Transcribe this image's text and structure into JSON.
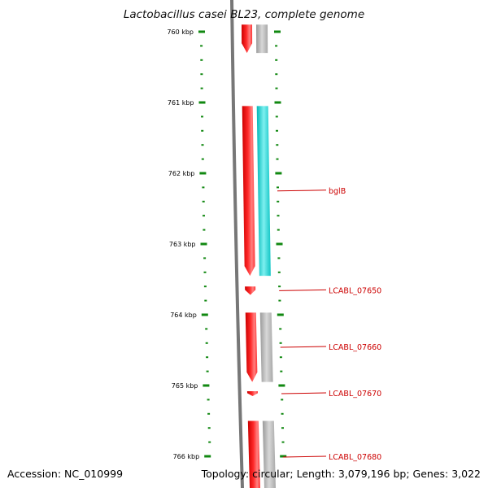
{
  "title": "Lactobacillus casei BL23, complete genome",
  "footer": {
    "accession": "Accession: NC_010999",
    "summary": "Topology: circular; Length: 3,079,196 bp; Genes: 3,022"
  },
  "scale": {
    "unit": "kbp",
    "ticks": [
      760,
      761,
      762,
      763,
      764,
      765,
      766
    ],
    "tick_labels": [
      "760 kbp",
      "761 kbp",
      "762 kbp",
      "763 kbp",
      "764 kbp",
      "765 kbp",
      "766 kbp"
    ]
  },
  "colors": {
    "forward_gene": "#ff0000",
    "gene_label": "#cc0000",
    "cds_grey": "#b0b0b0",
    "cds_highlight": "#11cccc",
    "backbone": "#777777",
    "ruler": "#118811",
    "title_text": "#111111"
  },
  "genes": [
    {
      "start_kbp": 759.9,
      "end_kbp": 760.3,
      "cds": "grey",
      "label": ""
    },
    {
      "start_kbp": 761.05,
      "end_kbp": 763.45,
      "cds": "highlight",
      "label": "bglB"
    },
    {
      "start_kbp": 763.6,
      "end_kbp": 763.72,
      "cds": "none",
      "label": "LCABL_07650"
    },
    {
      "start_kbp": 763.97,
      "end_kbp": 764.95,
      "cds": "grey",
      "label": "LCABL_07660"
    },
    {
      "start_kbp": 765.08,
      "end_kbp": 765.15,
      "cds": "none",
      "label": "LCABL_07670"
    },
    {
      "start_kbp": 765.5,
      "end_kbp": 766.5,
      "cds": "grey",
      "label": "LCABL_07680"
    }
  ]
}
